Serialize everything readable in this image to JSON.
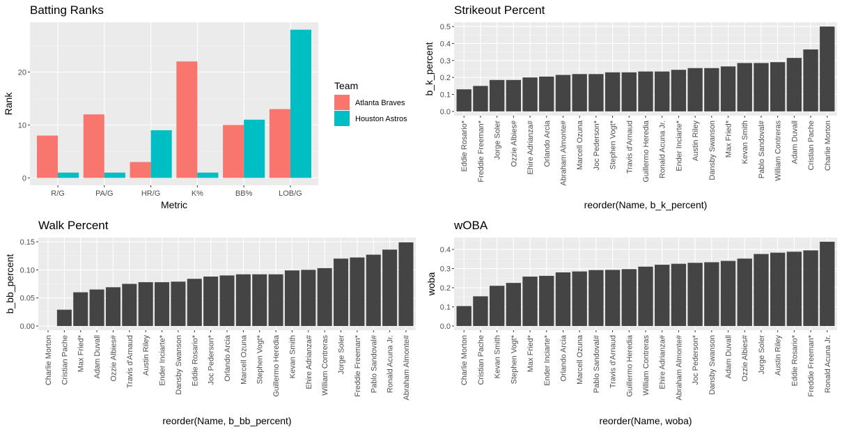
{
  "chart_data": [
    {
      "type": "bar",
      "title": "Batting Ranks",
      "xlabel": "Metric",
      "ylabel": "Rank",
      "categories": [
        "R/G",
        "PA/G",
        "HR/G",
        "K%",
        "BB%",
        "LOB/G"
      ],
      "yticks": [
        "0",
        "10",
        "20"
      ],
      "ylim": [
        0,
        28
      ],
      "grid": true,
      "legend": {
        "title": "Team",
        "placement": "right"
      },
      "series": [
        {
          "name": "Atlanta Braves",
          "color": "#F8766D",
          "values": [
            8,
            12,
            3,
            22,
            10,
            13
          ]
        },
        {
          "name": "Houston Astros",
          "color": "#00BFC4",
          "values": [
            1,
            1,
            9,
            1,
            11,
            28
          ]
        }
      ]
    },
    {
      "type": "bar",
      "title": "Strikeout Percent",
      "xlabel": "reorder(Name, b_k_percent)",
      "ylabel": "b_k_percent",
      "yticks": [
        "0.0",
        "0.1",
        "0.2",
        "0.3",
        "0.4",
        "0.5"
      ],
      "ylim": [
        0,
        0.5
      ],
      "grid": true,
      "bar_color": "#444444",
      "categories": [
        "Eddie Rosario*",
        "Freddie Freeman*",
        "Jorge Soler",
        "Ozzie Albies#",
        "Ehire Adrianza#",
        "Orlando Arcia",
        "Abraham Almonte#",
        "Marcell Ozuna",
        "Joc Pederson*",
        "Stephen Vogt*",
        "Travis d'Arnaud",
        "Guillermo Heredia",
        "Ronald Acuna Jr.",
        "Ender Inciarte*",
        "Austin Riley",
        "Dansby Swanson",
        "Max Fried*",
        "Kevan Smith",
        "Pablo Sandoval#",
        "William Contreras",
        "Adam Duvall",
        "Cristian Pache",
        "Charlie Morton"
      ],
      "values": [
        0.13,
        0.15,
        0.185,
        0.185,
        0.2,
        0.205,
        0.215,
        0.22,
        0.22,
        0.23,
        0.23,
        0.235,
        0.235,
        0.245,
        0.255,
        0.255,
        0.265,
        0.285,
        0.285,
        0.29,
        0.315,
        0.365,
        0.5
      ]
    },
    {
      "type": "bar",
      "title": "Walk Percent",
      "xlabel": "reorder(Name, b_bb_percent)",
      "ylabel": "b_bb_percent",
      "yticks": [
        "0.00",
        "0.05",
        "0.10",
        "0.15"
      ],
      "ylim": [
        0,
        0.15
      ],
      "grid": true,
      "bar_color": "#444444",
      "categories": [
        "Charlie Morton",
        "Cristian Pache",
        "Max Fried*",
        "Adam Duvall",
        "Ozzie Albies#",
        "Travis d'Arnaud",
        "Austin Riley",
        "Ender Inciarte*",
        "Dansby Swanson",
        "Eddie Rosario*",
        "Joc Pederson*",
        "Orlando Arcia",
        "Marcell Ozuna",
        "Stephen Vogt*",
        "Guillermo Heredia",
        "Kevan Smith",
        "Ehire Adrianza#",
        "William Contreras",
        "Jorge Soler",
        "Freddie Freeman*",
        "Pablo Sandoval#",
        "Ronald Acuna Jr.",
        "Abraham Almonte#"
      ],
      "values": [
        0.0,
        0.029,
        0.06,
        0.065,
        0.069,
        0.075,
        0.078,
        0.078,
        0.079,
        0.084,
        0.088,
        0.09,
        0.092,
        0.092,
        0.092,
        0.099,
        0.1,
        0.103,
        0.12,
        0.122,
        0.127,
        0.136,
        0.149
      ]
    },
    {
      "type": "bar",
      "title": "wOBA",
      "xlabel": "reorder(Name, woba)",
      "ylabel": "woba",
      "yticks": [
        "0.0",
        "0.1",
        "0.2",
        "0.3",
        "0.4"
      ],
      "ylim": [
        0,
        0.44
      ],
      "grid": true,
      "bar_color": "#444444",
      "categories": [
        "Charlie Morton",
        "Cristian Pache",
        "Kevan Smith",
        "Stephen Vogt*",
        "Max Fried*",
        "Ender Inciarte*",
        "Orlando Arcia",
        "Marcell Ozuna",
        "Pablo Sandoval#",
        "Travis d'Arnaud",
        "Guillermo Heredia",
        "William Contreras",
        "Ehire Adrianza#",
        "Abraham Almonte#",
        "Joc Pederson*",
        "Dansby Swanson",
        "Adam Duvall",
        "Ozzie Albies#",
        "Jorge Soler",
        "Austin Riley",
        "Eddie Rosario*",
        "Freddie Freeman*",
        "Ronald Acuna Jr."
      ],
      "values": [
        0.104,
        0.155,
        0.21,
        0.225,
        0.258,
        0.262,
        0.28,
        0.285,
        0.292,
        0.293,
        0.297,
        0.31,
        0.32,
        0.325,
        0.33,
        0.333,
        0.34,
        0.352,
        0.376,
        0.383,
        0.388,
        0.395,
        0.44
      ]
    }
  ]
}
